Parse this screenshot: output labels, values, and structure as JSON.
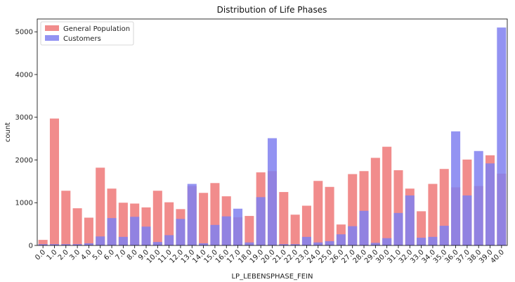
{
  "chart_data": {
    "type": "bar",
    "title": "Distribution of Life Phases",
    "xlabel": "LP_LEBENSPHASE_FEIN",
    "ylabel": "count",
    "ylim": [
      0,
      5300
    ],
    "yticks": [
      0,
      1000,
      2000,
      3000,
      4000,
      5000
    ],
    "grid": false,
    "legend_position": "top-left",
    "categories": [
      "0.0",
      "1.0",
      "2.0",
      "3.0",
      "4.0",
      "5.0",
      "6.0",
      "7.0",
      "8.0",
      "9.0",
      "10.0",
      "11.0",
      "12.0",
      "13.0",
      "14.0",
      "15.0",
      "16.0",
      "17.0",
      "18.0",
      "19.0",
      "20.0",
      "21.0",
      "22.0",
      "23.0",
      "24.0",
      "25.0",
      "26.0",
      "27.0",
      "28.0",
      "29.0",
      "30.0",
      "31.0",
      "32.0",
      "33.0",
      "34.0",
      "35.0",
      "36.0",
      "37.0",
      "38.0",
      "39.0",
      "40.0"
    ],
    "series": [
      {
        "name": "General Population",
        "color": "#f08080",
        "values": [
          130,
          2970,
          1280,
          870,
          650,
          1820,
          1330,
          1000,
          980,
          890,
          1280,
          1010,
          850,
          1390,
          1230,
          1460,
          1150,
          660,
          690,
          1710,
          1740,
          1250,
          720,
          930,
          1510,
          1370,
          490,
          1670,
          1740,
          2050,
          2310,
          1760,
          1330,
          800,
          1440,
          1790,
          1360,
          2010,
          1390,
          2110,
          1680
        ]
      },
      {
        "name": "Customers",
        "color": "#8080f0",
        "values": [
          30,
          30,
          30,
          30,
          50,
          210,
          640,
          200,
          670,
          440,
          80,
          240,
          620,
          1440,
          50,
          480,
          680,
          860,
          70,
          1130,
          2510,
          30,
          30,
          200,
          70,
          100,
          260,
          450,
          810,
          60,
          170,
          760,
          1170,
          180,
          200,
          460,
          2670,
          1170,
          2210,
          1920,
          5100
        ]
      }
    ]
  }
}
